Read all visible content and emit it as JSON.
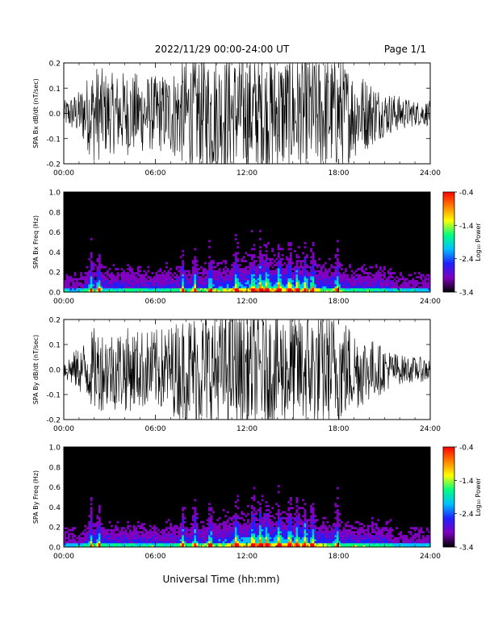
{
  "header": {
    "title": "2022/11/29  00:00-24:00 UT",
    "page": "Page 1/1"
  },
  "chart_data": [
    {
      "type": "line",
      "ylabel": "SPA Bx dB/dt (nT/sec)",
      "xlim": [
        0,
        24
      ],
      "ylim": [
        -0.2,
        0.2
      ],
      "xticks": [
        "00:00",
        "06:00",
        "12:00",
        "18:00",
        "24:00"
      ],
      "yticks": [
        "-0.2",
        "-0.1",
        "0.0",
        "0.1",
        "0.2"
      ],
      "series": [
        {
          "envelope_hours": [
            0,
            1,
            2,
            3,
            4,
            5,
            6,
            7,
            8,
            9,
            10,
            11,
            12,
            13,
            14,
            15,
            16,
            17,
            18,
            19,
            20,
            21,
            22,
            23,
            24
          ],
          "envelope_amp": [
            0.05,
            0.09,
            0.2,
            0.16,
            0.17,
            0.16,
            0.15,
            0.17,
            0.22,
            0.24,
            0.24,
            0.24,
            0.24,
            0.24,
            0.24,
            0.24,
            0.24,
            0.23,
            0.23,
            0.18,
            0.14,
            0.09,
            0.07,
            0.05,
            0.05
          ]
        }
      ]
    },
    {
      "type": "heatmap",
      "ylabel": "SPA Bx Freq (Hz)",
      "xlim": [
        0,
        24
      ],
      "ylim": [
        0,
        1.0
      ],
      "xticks": [
        "00:00",
        "06:00",
        "12:00",
        "18:00",
        "24:00"
      ],
      "yticks": [
        "0.0",
        "0.2",
        "0.4",
        "0.6",
        "0.8",
        "1.0"
      ],
      "colorbar": {
        "label": "Log₁₀ Power",
        "ticks": [
          "-0.4",
          "-1.4",
          "-2.4",
          "-3.4"
        ],
        "range": [
          -3.4,
          -0.4
        ]
      },
      "colors": [
        "#000000",
        "#8000c0",
        "#2020ff",
        "#00c0ff",
        "#00ff80",
        "#ffff00",
        "#ff8000",
        "#ff0000"
      ]
    },
    {
      "type": "line",
      "ylabel": "SPA By dB/dt (nT/sec)",
      "xlim": [
        0,
        24
      ],
      "ylim": [
        -0.2,
        0.2
      ],
      "xticks": [
        "00:00",
        "06:00",
        "12:00",
        "18:00",
        "24:00"
      ],
      "yticks": [
        "-0.2",
        "-0.1",
        "0.0",
        "0.1",
        "0.2"
      ],
      "series": [
        {
          "envelope_hours": [
            0,
            1,
            2,
            3,
            4,
            5,
            6,
            7,
            8,
            9,
            10,
            11,
            12,
            13,
            14,
            15,
            16,
            17,
            18,
            19,
            20,
            21,
            22,
            23,
            24
          ],
          "envelope_amp": [
            0.04,
            0.09,
            0.17,
            0.16,
            0.17,
            0.16,
            0.16,
            0.18,
            0.22,
            0.24,
            0.24,
            0.24,
            0.24,
            0.24,
            0.24,
            0.24,
            0.24,
            0.23,
            0.23,
            0.17,
            0.13,
            0.09,
            0.06,
            0.05,
            0.05
          ]
        }
      ]
    },
    {
      "type": "heatmap",
      "ylabel": "SPA By Freq (Hz)",
      "xlim": [
        0,
        24
      ],
      "ylim": [
        0,
        1.0
      ],
      "xticks": [
        "00:00",
        "06:00",
        "12:00",
        "18:00",
        "24:00"
      ],
      "yticks": [
        "0.0",
        "0.2",
        "0.4",
        "0.6",
        "0.8",
        "1.0"
      ],
      "colorbar": {
        "label": "Log₁₀ Power",
        "ticks": [
          "-0.4",
          "-1.4",
          "-2.4",
          "-3.4"
        ],
        "range": [
          -3.4,
          -0.4
        ]
      },
      "colors": [
        "#000000",
        "#8000c0",
        "#2020ff",
        "#00c0ff",
        "#00ff80",
        "#ffff00",
        "#ff8000",
        "#ff0000"
      ]
    }
  ],
  "xlabel": "Universal Time (hh:mm)"
}
